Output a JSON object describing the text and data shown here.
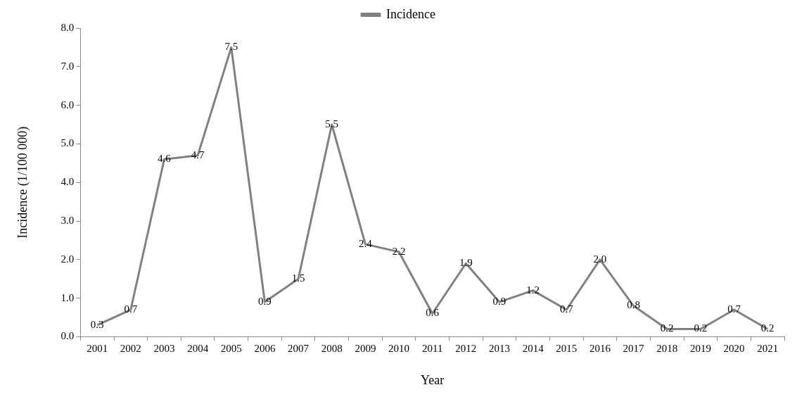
{
  "chart_data": {
    "type": "line",
    "xlabel": "Year",
    "ylabel": "Incidence (1/100 000)",
    "categories": [
      "2001",
      "2002",
      "2003",
      "2004",
      "2005",
      "2006",
      "2007",
      "2008",
      "2009",
      "2010",
      "2011",
      "2012",
      "2013",
      "2014",
      "2015",
      "2016",
      "2017",
      "2018",
      "2019",
      "2020",
      "2021"
    ],
    "series": [
      {
        "name": "Incidence",
        "color": "#808080",
        "values": [
          0.3,
          0.7,
          4.6,
          4.7,
          7.5,
          0.9,
          1.5,
          5.5,
          2.4,
          2.2,
          0.6,
          1.9,
          0.9,
          1.2,
          0.7,
          2.0,
          0.8,
          0.2,
          0.2,
          0.7,
          0.2
        ],
        "value_labels": [
          "0.3",
          "0.7",
          "4.6",
          "4.7",
          "7.5",
          "0.9",
          "1.5",
          "5.5",
          "2.4",
          "2.2",
          "0.6",
          "1.9",
          "0.9",
          "1.2",
          "0.7",
          "2.0",
          "0.8",
          "0.2",
          "0.2",
          "0.7",
          "0.2"
        ]
      }
    ],
    "ylim": [
      0,
      8
    ],
    "yticks": [
      {
        "value": 0,
        "label": "0.0"
      },
      {
        "value": 1,
        "label": "1.0"
      },
      {
        "value": 2,
        "label": "2.0"
      },
      {
        "value": 3,
        "label": "3.0"
      },
      {
        "value": 4,
        "label": "4.0"
      },
      {
        "value": 5,
        "label": "5.0"
      },
      {
        "value": 6,
        "label": "6.0"
      },
      {
        "value": 7,
        "label": "7.0"
      },
      {
        "value": 8,
        "label": "8.0"
      }
    ],
    "grid": false,
    "legend": "top",
    "marker": "none",
    "line_style": "solid"
  }
}
